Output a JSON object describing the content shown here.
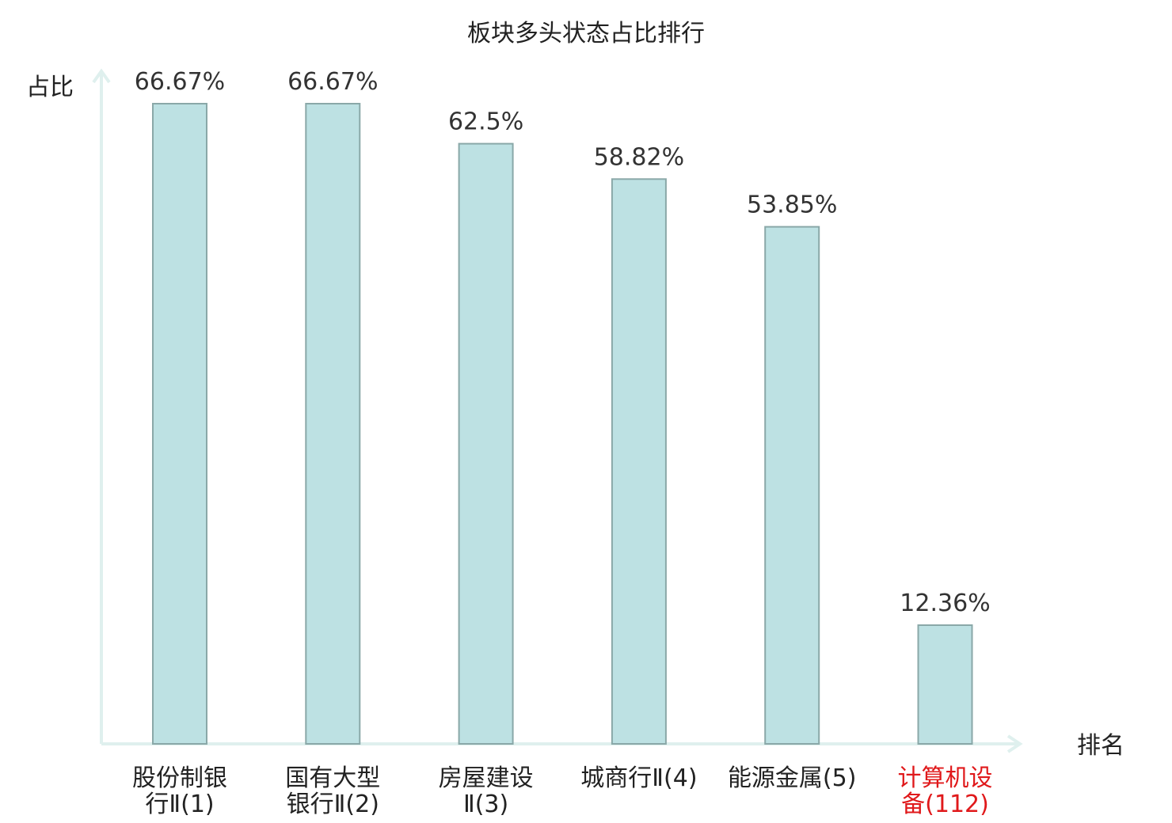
{
  "chart_data": {
    "type": "bar",
    "title": "板块多头状态占比排行",
    "ylabel": "占比",
    "xlabel": "排名",
    "ylim": [
      0,
      75
    ],
    "categories": [
      {
        "line1": "股份制银",
        "line2": "行Ⅱ(1)",
        "highlight": false
      },
      {
        "line1": "国有大型",
        "line2": "银行Ⅱ(2)",
        "highlight": false
      },
      {
        "line1": "房屋建设",
        "line2": "Ⅱ(3)",
        "highlight": false
      },
      {
        "line1": "城商行Ⅱ(4)",
        "line2": "",
        "highlight": false
      },
      {
        "line1": "能源金属(5)",
        "line2": "",
        "highlight": false
      },
      {
        "line1": "计算机设",
        "line2": "备(112)",
        "highlight": true
      }
    ],
    "values": [
      66.67,
      66.67,
      62.5,
      58.82,
      53.85,
      12.36
    ],
    "value_labels": [
      "66.67%",
      "66.67%",
      "62.5%",
      "58.82%",
      "53.85%",
      "12.36%"
    ],
    "colors": {
      "bar_fill": "#bde1e3",
      "bar_stroke": "#8aa8a8",
      "axis": "#dff0ee",
      "highlight_text": "#e0191b",
      "normal_text": "#222222"
    },
    "grid": false,
    "legend": "none"
  }
}
